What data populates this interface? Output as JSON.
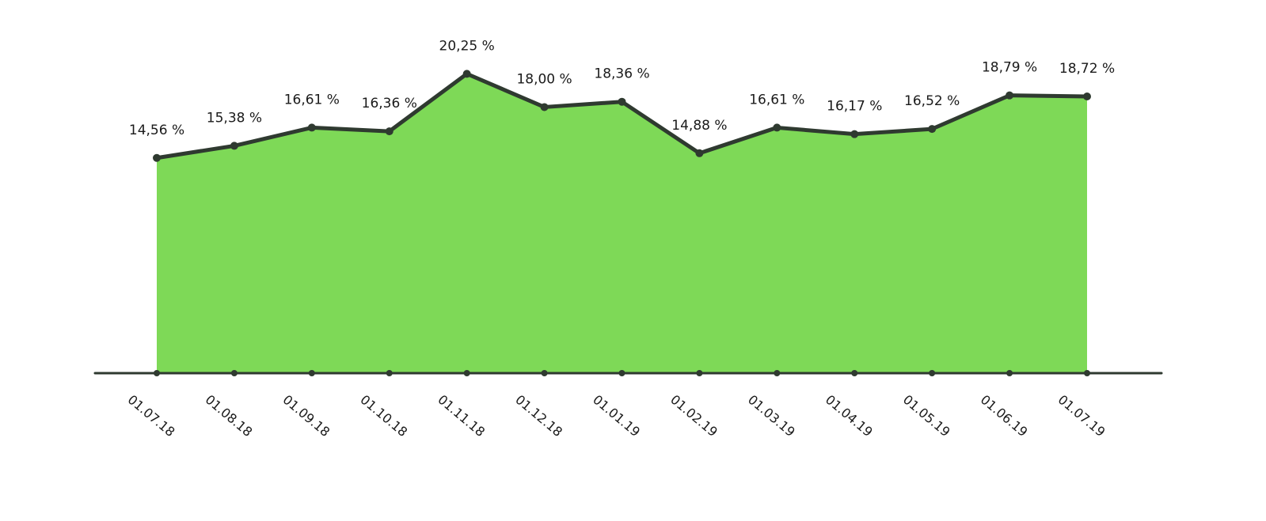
{
  "chart_data": {
    "type": "area",
    "categories": [
      "01.07.18",
      "01.08.18",
      "01.09.18",
      "01.10.18",
      "01.11.18",
      "01.12.18",
      "01.01.19",
      "01.02.19",
      "01.03.19",
      "01.04.19",
      "01.05.19",
      "01.06.19",
      "01.07.19"
    ],
    "values": [
      14.56,
      15.38,
      16.61,
      16.36,
      20.25,
      18.0,
      18.36,
      14.88,
      16.61,
      16.17,
      16.52,
      18.79,
      18.72
    ],
    "data_labels": [
      "14,56 %",
      "15,38 %",
      "16,61 %",
      "16,36 %",
      "20,25 %",
      "18,00 %",
      "18,36 %",
      "14,88 %",
      "16,61 %",
      "16,17 %",
      "16,52 %",
      "18,79 %",
      "18,72 %"
    ],
    "title": "",
    "xlabel": "",
    "ylabel": "",
    "ylim": [
      0,
      21.5
    ],
    "grid": false,
    "legend": "none",
    "colors": {
      "area": "#7ed957",
      "line": "#2f3a30",
      "axis": "#2f3a30",
      "text": "#1a1a1a"
    }
  }
}
